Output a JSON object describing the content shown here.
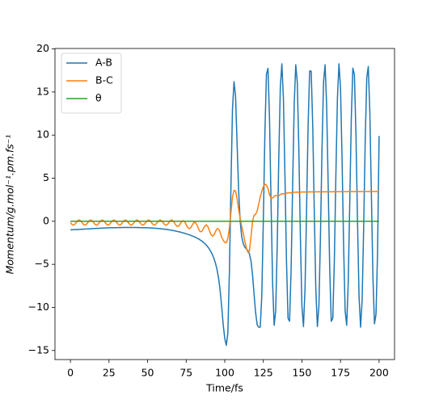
{
  "chart_data": {
    "type": "line",
    "xlabel": "Time/fs",
    "ylabel": "Momentum/g.mol⁻¹.pm.fs⁻¹",
    "x": [
      0,
      1,
      2,
      3,
      4,
      5,
      6,
      7,
      8,
      9,
      10,
      11,
      12,
      13,
      14,
      15,
      16,
      17,
      18,
      19,
      20,
      21,
      22,
      23,
      24,
      25,
      26,
      27,
      28,
      29,
      30,
      31,
      32,
      33,
      34,
      35,
      36,
      37,
      38,
      39,
      40,
      41,
      42,
      43,
      44,
      45,
      46,
      47,
      48,
      49,
      50,
      51,
      52,
      53,
      54,
      55,
      56,
      57,
      58,
      59,
      60,
      61,
      62,
      63,
      64,
      65,
      66,
      67,
      68,
      69,
      70,
      71,
      72,
      73,
      74,
      75,
      76,
      77,
      78,
      79,
      80,
      81,
      82,
      83,
      84,
      85,
      86,
      87,
      88,
      89,
      90,
      91,
      92,
      93,
      94,
      95,
      96,
      97,
      98,
      99,
      100,
      101,
      102,
      103,
      104,
      105,
      106,
      107,
      108,
      109,
      110,
      111,
      112,
      113,
      114,
      115,
      116,
      117,
      118,
      119,
      120,
      121,
      122,
      123,
      124,
      125,
      126,
      127,
      128,
      129,
      130,
      131,
      132,
      133,
      134,
      135,
      136,
      137,
      138,
      139,
      140,
      141,
      142,
      143,
      144,
      145,
      146,
      147,
      148,
      149,
      150,
      151,
      152,
      153,
      154,
      155,
      156,
      157,
      158,
      159,
      160,
      161,
      162,
      163,
      164,
      165,
      166,
      167,
      168,
      169,
      170,
      171,
      172,
      173,
      174,
      175,
      176,
      177,
      178,
      179,
      180,
      181,
      182,
      183,
      184,
      185,
      186,
      187,
      188,
      189,
      190,
      191,
      192,
      193,
      194,
      195,
      196,
      197,
      198,
      199,
      200
    ],
    "series": [
      {
        "name": "A-B",
        "color": "#1f77b4",
        "values": [
          -1.0,
          -0.99,
          -0.98,
          -0.97,
          -0.96,
          -0.95,
          -0.94,
          -0.93,
          -0.92,
          -0.91,
          -0.9,
          -0.89,
          -0.88,
          -0.87,
          -0.86,
          -0.85,
          -0.84,
          -0.83,
          -0.82,
          -0.81,
          -0.8,
          -0.79,
          -0.78,
          -0.78,
          -0.77,
          -0.76,
          -0.76,
          -0.75,
          -0.75,
          -0.74,
          -0.74,
          -0.73,
          -0.73,
          -0.73,
          -0.72,
          -0.72,
          -0.72,
          -0.72,
          -0.72,
          -0.72,
          -0.72,
          -0.72,
          -0.72,
          -0.73,
          -0.73,
          -0.73,
          -0.74,
          -0.74,
          -0.75,
          -0.75,
          -0.76,
          -0.77,
          -0.78,
          -0.79,
          -0.8,
          -0.81,
          -0.83,
          -0.84,
          -0.86,
          -0.88,
          -0.9,
          -0.92,
          -0.94,
          -0.97,
          -1.0,
          -1.03,
          -1.06,
          -1.09,
          -1.13,
          -1.17,
          -1.21,
          -1.25,
          -1.3,
          -1.35,
          -1.4,
          -1.45,
          -1.51,
          -1.57,
          -1.64,
          -1.71,
          -1.78,
          -1.86,
          -1.95,
          -2.05,
          -2.16,
          -2.28,
          -2.42,
          -2.58,
          -2.76,
          -2.97,
          -3.22,
          -3.52,
          -3.88,
          -4.32,
          -4.88,
          -5.6,
          -6.6,
          -8.0,
          -9.9,
          -12.0,
          -13.6,
          -14.4,
          -13.0,
          -6.0,
          4.0,
          13.0,
          16.2,
          14.5,
          9.0,
          3.5,
          0.0,
          -1.8,
          -2.6,
          -3.0,
          -3.2,
          -3.4,
          -3.8,
          -4.6,
          -6.2,
          -8.5,
          -10.6,
          -12.0,
          -12.3,
          -12.29,
          -8.61,
          0.18,
          10.21,
          17.06,
          17.75,
          11.95,
          2.22,
          -7.16,
          -12.08,
          -10.38,
          -2.8,
          7.31,
          15.56,
          18.27,
          14.26,
          5.31,
          -4.65,
          -11.26,
          -11.6,
          -5.54,
          4.3,
          13.56,
          18.16,
          16.11,
          8.31,
          -1.83,
          -9.85,
          -12.22,
          -7.91,
          1.19,
          11.08,
          17.44,
          17.43,
          11.08,
          1.19,
          -7.91,
          -12.22,
          -9.85,
          -1.83,
          8.34,
          16.13,
          18.16,
          13.53,
          4.28,
          -5.54,
          -11.61,
          -11.25,
          -4.62,
          5.34,
          14.28,
          18.27,
          15.53,
          7.3,
          -2.83,
          -10.4,
          -12.07,
          -7.11,
          2.28,
          12.0,
          17.76,
          17.03,
          10.13,
          0.11,
          -8.67,
          -12.3,
          -9.21,
          -0.75,
          9.35,
          16.66,
          17.96,
          12.68,
          3.15,
          -6.46,
          -11.9,
          -10.8,
          -3.64,
          9.9
        ]
      },
      {
        "name": "B-C",
        "color": "#ff7f0e",
        "values": [
          -0.15,
          -0.37,
          -0.45,
          -0.33,
          -0.09,
          0.11,
          0.14,
          -0.03,
          -0.27,
          -0.44,
          -0.41,
          -0.21,
          0.03,
          0.15,
          0.07,
          -0.15,
          -0.37,
          -0.45,
          -0.33,
          -0.09,
          0.11,
          0.14,
          -0.03,
          -0.27,
          -0.44,
          -0.41,
          -0.21,
          0.03,
          0.15,
          0.07,
          -0.15,
          -0.37,
          -0.45,
          -0.33,
          -0.09,
          0.11,
          0.14,
          -0.03,
          -0.27,
          -0.44,
          -0.41,
          -0.21,
          0.03,
          0.15,
          0.07,
          -0.15,
          -0.37,
          -0.45,
          -0.33,
          -0.09,
          0.11,
          0.14,
          -0.03,
          -0.27,
          -0.44,
          -0.41,
          -0.21,
          0.03,
          0.15,
          0.07,
          -0.15,
          -0.38,
          -0.47,
          -0.35,
          -0.1,
          0.12,
          0.14,
          -0.05,
          -0.36,
          -0.58,
          -0.58,
          -0.35,
          -0.06,
          0.08,
          -0.04,
          -0.38,
          -0.72,
          -0.87,
          -0.74,
          -0.42,
          -0.15,
          -0.15,
          -0.44,
          -0.88,
          -1.19,
          -1.21,
          -0.93,
          -0.58,
          -0.41,
          -0.6,
          -1.05,
          -1.52,
          -1.73,
          -1.57,
          -1.19,
          -0.87,
          -0.89,
          -1.28,
          -1.85,
          -2.2,
          -2.45,
          -2.5,
          -2.0,
          -0.8,
          1.0,
          2.8,
          3.6,
          3.5,
          2.6,
          1.4,
          0.3,
          -0.6,
          -1.4,
          -2.3,
          -3.1,
          -3.6,
          -3.4,
          -1.8,
          0.0,
          0.7,
          0.8,
          1.2,
          2.0,
          2.8,
          3.5,
          4.0,
          4.3,
          4.2,
          3.8,
          3.1,
          2.7,
          2.7,
          2.9,
          3.0,
          2.95,
          2.95,
          3.1,
          3.2,
          3.2,
          3.15,
          3.25,
          3.3,
          3.3,
          3.3,
          3.35,
          3.36,
          3.37,
          3.37,
          3.38,
          3.38,
          3.39,
          3.39,
          3.4,
          3.4,
          3.4,
          3.41,
          3.41,
          3.41,
          3.42,
          3.42,
          3.42,
          3.42,
          3.42,
          3.42,
          3.42,
          3.42,
          3.42,
          3.42,
          3.42,
          3.42,
          3.43,
          3.43,
          3.43,
          3.43,
          3.43,
          3.43,
          3.43,
          3.43,
          3.43,
          3.43,
          3.44,
          3.44,
          3.44,
          3.44,
          3.44,
          3.44,
          3.44,
          3.44,
          3.44,
          3.44,
          3.45,
          3.45,
          3.45,
          3.45,
          3.45,
          3.45,
          3.45,
          3.45,
          3.45,
          3.45,
          3.45
        ]
      },
      {
        "name": "θ",
        "color": "#2ca02c",
        "values": [
          0,
          0,
          0,
          0,
          0,
          0,
          0,
          0,
          0,
          0,
          0,
          0,
          0,
          0,
          0,
          0,
          0,
          0,
          0,
          0,
          0,
          0,
          0,
          0,
          0,
          0,
          0,
          0,
          0,
          0,
          0,
          0,
          0,
          0,
          0,
          0,
          0,
          0,
          0,
          0,
          0,
          0,
          0,
          0,
          0,
          0,
          0,
          0,
          0,
          0,
          0,
          0,
          0,
          0,
          0,
          0,
          0,
          0,
          0,
          0,
          0,
          0,
          0,
          0,
          0,
          0,
          0,
          0,
          0,
          0,
          0,
          0,
          0,
          0,
          0,
          0,
          0,
          0,
          0,
          0,
          0,
          0,
          0,
          0,
          0,
          0,
          0,
          0,
          0,
          0,
          0,
          0,
          0,
          0,
          0,
          0,
          0,
          0,
          0,
          0,
          0,
          0,
          0,
          0,
          0,
          0,
          0,
          0,
          0,
          0,
          0,
          0,
          0,
          0,
          0,
          0,
          0,
          0,
          0,
          0,
          0,
          0,
          0,
          0,
          0,
          0,
          0,
          0,
          0,
          0,
          0,
          0,
          0,
          0,
          0,
          0,
          0,
          0,
          0,
          0,
          0,
          0,
          0,
          0,
          0,
          0,
          0,
          0,
          0,
          0,
          0,
          0,
          0,
          0,
          0,
          0,
          0,
          0,
          0,
          0,
          0,
          0,
          0,
          0,
          0,
          0,
          0,
          0,
          0,
          0,
          0,
          0,
          0,
          0,
          0,
          0,
          0,
          0,
          0,
          0,
          0,
          0,
          0,
          0,
          0,
          0,
          0,
          0,
          0,
          0,
          0,
          0,
          0,
          0,
          0,
          0,
          0,
          0,
          0,
          0,
          0
        ]
      }
    ],
    "xlim": [
      -10,
      210
    ],
    "xticks": [
      0,
      25,
      50,
      75,
      100,
      125,
      150,
      175,
      200
    ],
    "ylim": [
      -16.05,
      20.05
    ],
    "yticks": [
      {
        "value": -15,
        "label": "−15"
      },
      {
        "value": -10,
        "label": "−10"
      },
      {
        "value": -5,
        "label": "−5"
      },
      0,
      5,
      10,
      15,
      20
    ],
    "grid": false,
    "legend": "upper left"
  }
}
